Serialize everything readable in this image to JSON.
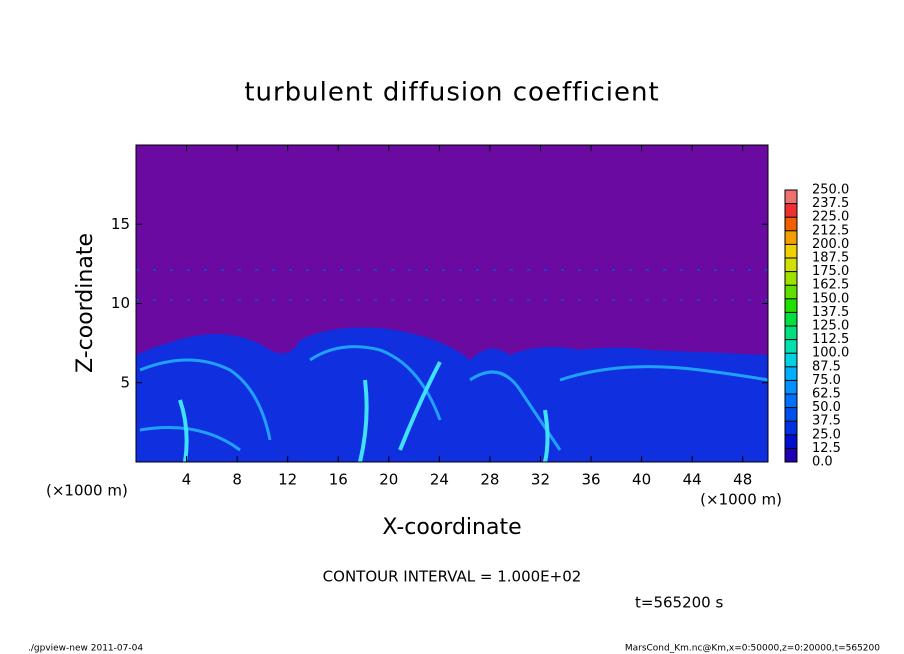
{
  "chart_data": {
    "type": "contour",
    "title": "turbulent diffusion coefficient",
    "xlabel": "X-coordinate",
    "ylabel": "Z-coordinate",
    "x_unit_left": "(×1000 m)",
    "x_unit_right": "(×1000 m)",
    "xlim": [
      0,
      50
    ],
    "xticks": [
      4,
      8,
      12,
      16,
      20,
      24,
      28,
      32,
      36,
      40,
      44,
      48
    ],
    "ylim": [
      0,
      20
    ],
    "yticks": [
      5,
      10,
      15
    ],
    "levels": [
      {
        "value": 0,
        "label": "0.0"
      },
      {
        "value": 12.5,
        "label": "12.5"
      },
      {
        "value": 25,
        "label": "25.0"
      },
      {
        "value": 37.5,
        "label": "37.5"
      },
      {
        "value": 50,
        "label": "50.0"
      },
      {
        "value": 62.5,
        "label": "62.5"
      },
      {
        "value": 75,
        "label": "75.0"
      },
      {
        "value": 87.5,
        "label": "87.5"
      },
      {
        "value": 100,
        "label": "100.0"
      },
      {
        "value": 112.5,
        "label": "112.5"
      },
      {
        "value": 125,
        "label": "125.0"
      },
      {
        "value": 137.5,
        "label": "137.5"
      },
      {
        "value": 150,
        "label": "150.0"
      },
      {
        "value": 162.5,
        "label": "162.5"
      },
      {
        "value": 175,
        "label": "175.0"
      },
      {
        "value": 187.5,
        "label": "187.5"
      },
      {
        "value": 200,
        "label": "200.0"
      },
      {
        "value": 212.5,
        "label": "212.5"
      },
      {
        "value": 225,
        "label": "225.0"
      },
      {
        "value": 237.5,
        "label": "237.5"
      },
      {
        "value": 250,
        "label": "250.0"
      }
    ],
    "level_colors": [
      "#6a0aa0",
      "#2000b0",
      "#0010d0",
      "#0030e0",
      "#0050f0",
      "#0070ff",
      "#0090ff",
      "#00b0ff",
      "#00d0e0",
      "#00e0b0",
      "#00e080",
      "#00e040",
      "#20e000",
      "#60e000",
      "#a0e000",
      "#d0e000",
      "#f0d000",
      "#f0a000",
      "#f06000",
      "#f03030",
      "#f07070"
    ],
    "contour_interval_note": "CONTOUR INTERVAL = 1.000E+02",
    "time_note": "t=565200 s",
    "footer_left": "./gpview-new  2011-07-04",
    "footer_right": "MarsCond_Km.nc@Km,x=0:50000,z=0:20000,t=565200"
  }
}
